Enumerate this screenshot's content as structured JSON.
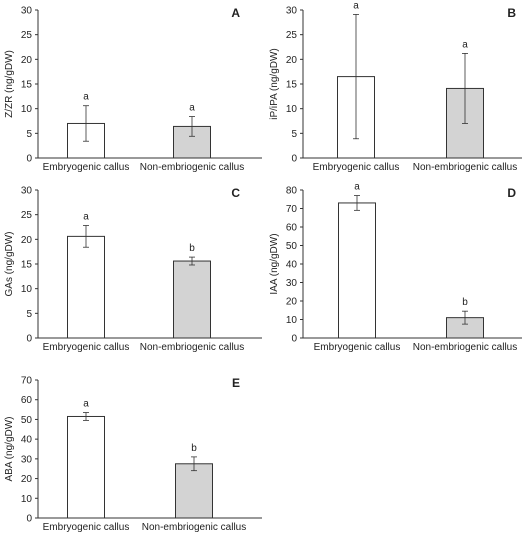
{
  "chart_data": [
    {
      "type": "bar",
      "panel": "A",
      "ylabel": "Z/ZR (ng/gDW)",
      "categories": [
        "Embryogenic callus",
        "Non-embriogenic callus"
      ],
      "values": [
        7.0,
        6.4
      ],
      "errors": [
        3.6,
        2.0
      ],
      "letters": [
        "a",
        "a"
      ],
      "bar_colors": [
        "#ffffff",
        "#d3d3d3"
      ],
      "ylim": [
        0,
        30
      ],
      "yticks": [
        0,
        5,
        10,
        15,
        20,
        25,
        30
      ]
    },
    {
      "type": "bar",
      "panel": "B",
      "ylabel": "iP/iPA (ng/gDW)",
      "categories": [
        "Embryogenic callus",
        "Non-embriogenic callus"
      ],
      "values": [
        16.5,
        14.1
      ],
      "errors": [
        12.6,
        7.1
      ],
      "letters": [
        "a",
        "a"
      ],
      "bar_colors": [
        "#ffffff",
        "#d3d3d3"
      ],
      "ylim": [
        0,
        30
      ],
      "yticks": [
        0,
        5,
        10,
        15,
        20,
        25,
        30
      ]
    },
    {
      "type": "bar",
      "panel": "C",
      "ylabel": "GAs (ng/gDW)",
      "categories": [
        "Embryogenic callus",
        "Non-embriogenic callus"
      ],
      "values": [
        20.6,
        15.6
      ],
      "errors": [
        2.2,
        0.8
      ],
      "letters": [
        "a",
        "b"
      ],
      "bar_colors": [
        "#ffffff",
        "#d3d3d3"
      ],
      "ylim": [
        0,
        30
      ],
      "yticks": [
        0,
        5,
        10,
        15,
        20,
        25,
        30
      ]
    },
    {
      "type": "bar",
      "panel": "D",
      "ylabel": "IAA (ng/gDW)",
      "categories": [
        "Embryogenic callus",
        "Non-embriogenic callus"
      ],
      "values": [
        73.0,
        11.0
      ],
      "errors": [
        4.0,
        3.5
      ],
      "letters": [
        "a",
        "b"
      ],
      "bar_colors": [
        "#ffffff",
        "#d3d3d3"
      ],
      "ylim": [
        0,
        80
      ],
      "yticks": [
        0,
        10,
        20,
        30,
        40,
        50,
        60,
        70,
        80
      ]
    },
    {
      "type": "bar",
      "panel": "E",
      "ylabel": "ABA (ng/gDW)",
      "categories": [
        "Embryogenic callus",
        "Non-embriogenic callus"
      ],
      "values": [
        51.5,
        27.5
      ],
      "errors": [
        2.0,
        3.5
      ],
      "letters": [
        "a",
        "b"
      ],
      "bar_colors": [
        "#ffffff",
        "#d3d3d3"
      ],
      "ylim": [
        0,
        70
      ],
      "yticks": [
        0,
        10,
        20,
        30,
        40,
        50,
        60,
        70
      ]
    }
  ]
}
